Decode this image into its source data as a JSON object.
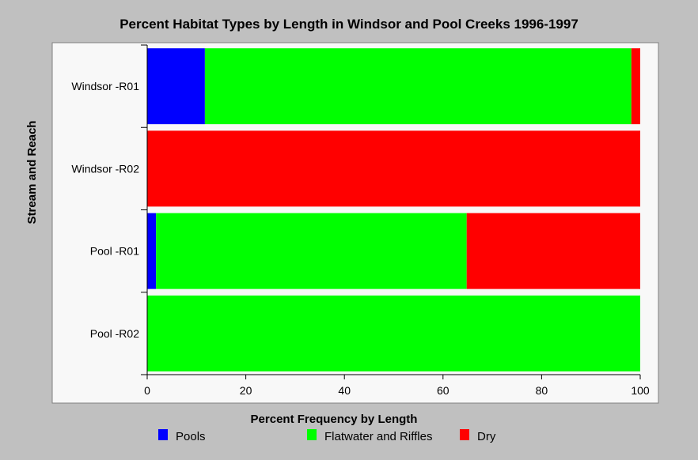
{
  "chart_data": {
    "type": "bar",
    "orientation": "horizontal",
    "stacked": true,
    "title": "Percent Habitat Types by Length in Windsor and Pool Creeks 1996-1997",
    "xlabel": "Percent Frequency by Length",
    "ylabel": "Stream and Reach",
    "xlim": [
      0,
      100
    ],
    "xticks": [
      "0",
      "20",
      "40",
      "60",
      "80",
      "100"
    ],
    "categories": [
      "Windsor -R01",
      "Windsor -R02",
      "Pool -R01",
      "Pool -R02"
    ],
    "series": [
      {
        "name": "Pools",
        "color": "#0000ff",
        "values": [
          11.7,
          0,
          1.8,
          0
        ]
      },
      {
        "name": "Flatwater and Riffles",
        "color": "#00ff00",
        "values": [
          86.5,
          0,
          63.0,
          100
        ]
      },
      {
        "name": "Dry",
        "color": "#ff0000",
        "values": [
          1.8,
          100,
          35.2,
          0
        ]
      }
    ],
    "grid": false,
    "legend": "bottom"
  }
}
